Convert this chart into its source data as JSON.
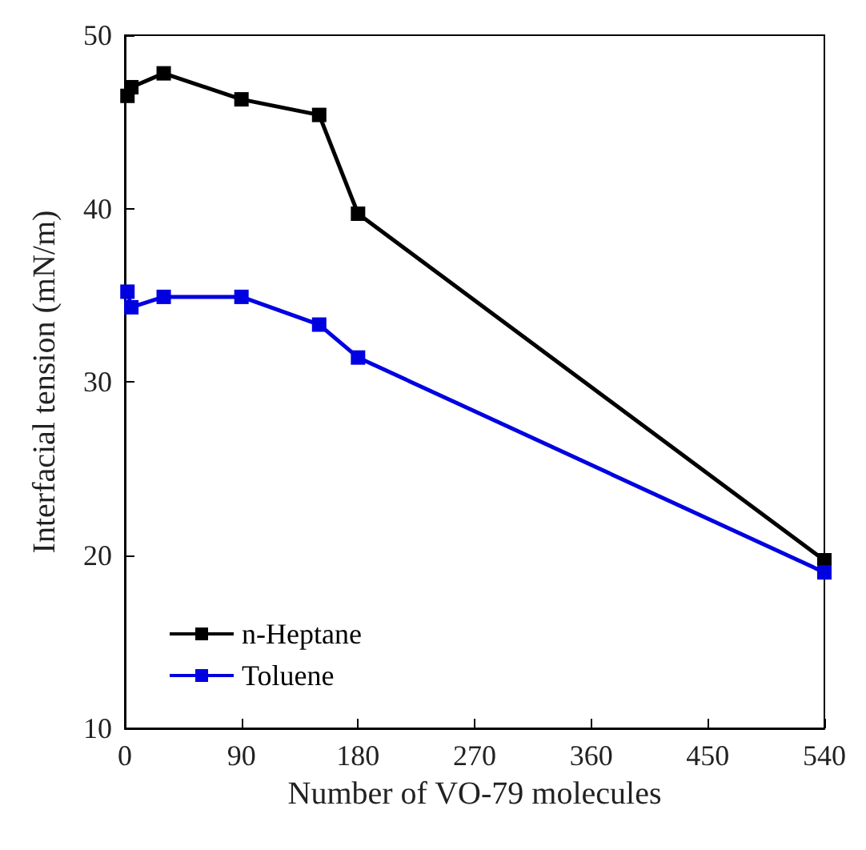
{
  "chart_data": {
    "type": "line",
    "xlabel": "Number of VO-79 molecules",
    "ylabel": "Interfacial tension (mN/m)",
    "xlim": [
      0,
      540
    ],
    "xticks": [
      0,
      90,
      180,
      270,
      360,
      450,
      540
    ],
    "ylim": [
      10,
      50
    ],
    "yticks": [
      10,
      20,
      30,
      40,
      50
    ],
    "x": [
      2,
      5,
      30,
      90,
      150,
      180,
      540
    ],
    "series": [
      {
        "name": "n-Heptane",
        "color": "#000000",
        "values": [
          46.5,
          47.0,
          47.8,
          46.3,
          45.4,
          39.7,
          19.7
        ]
      },
      {
        "name": "Toluene",
        "color": "#0000e0",
        "values": [
          35.2,
          34.3,
          34.9,
          34.9,
          33.3,
          31.4,
          19.0
        ]
      }
    ],
    "marker": "square",
    "line_style": "solid",
    "grid": false,
    "legend": "bottom left"
  }
}
